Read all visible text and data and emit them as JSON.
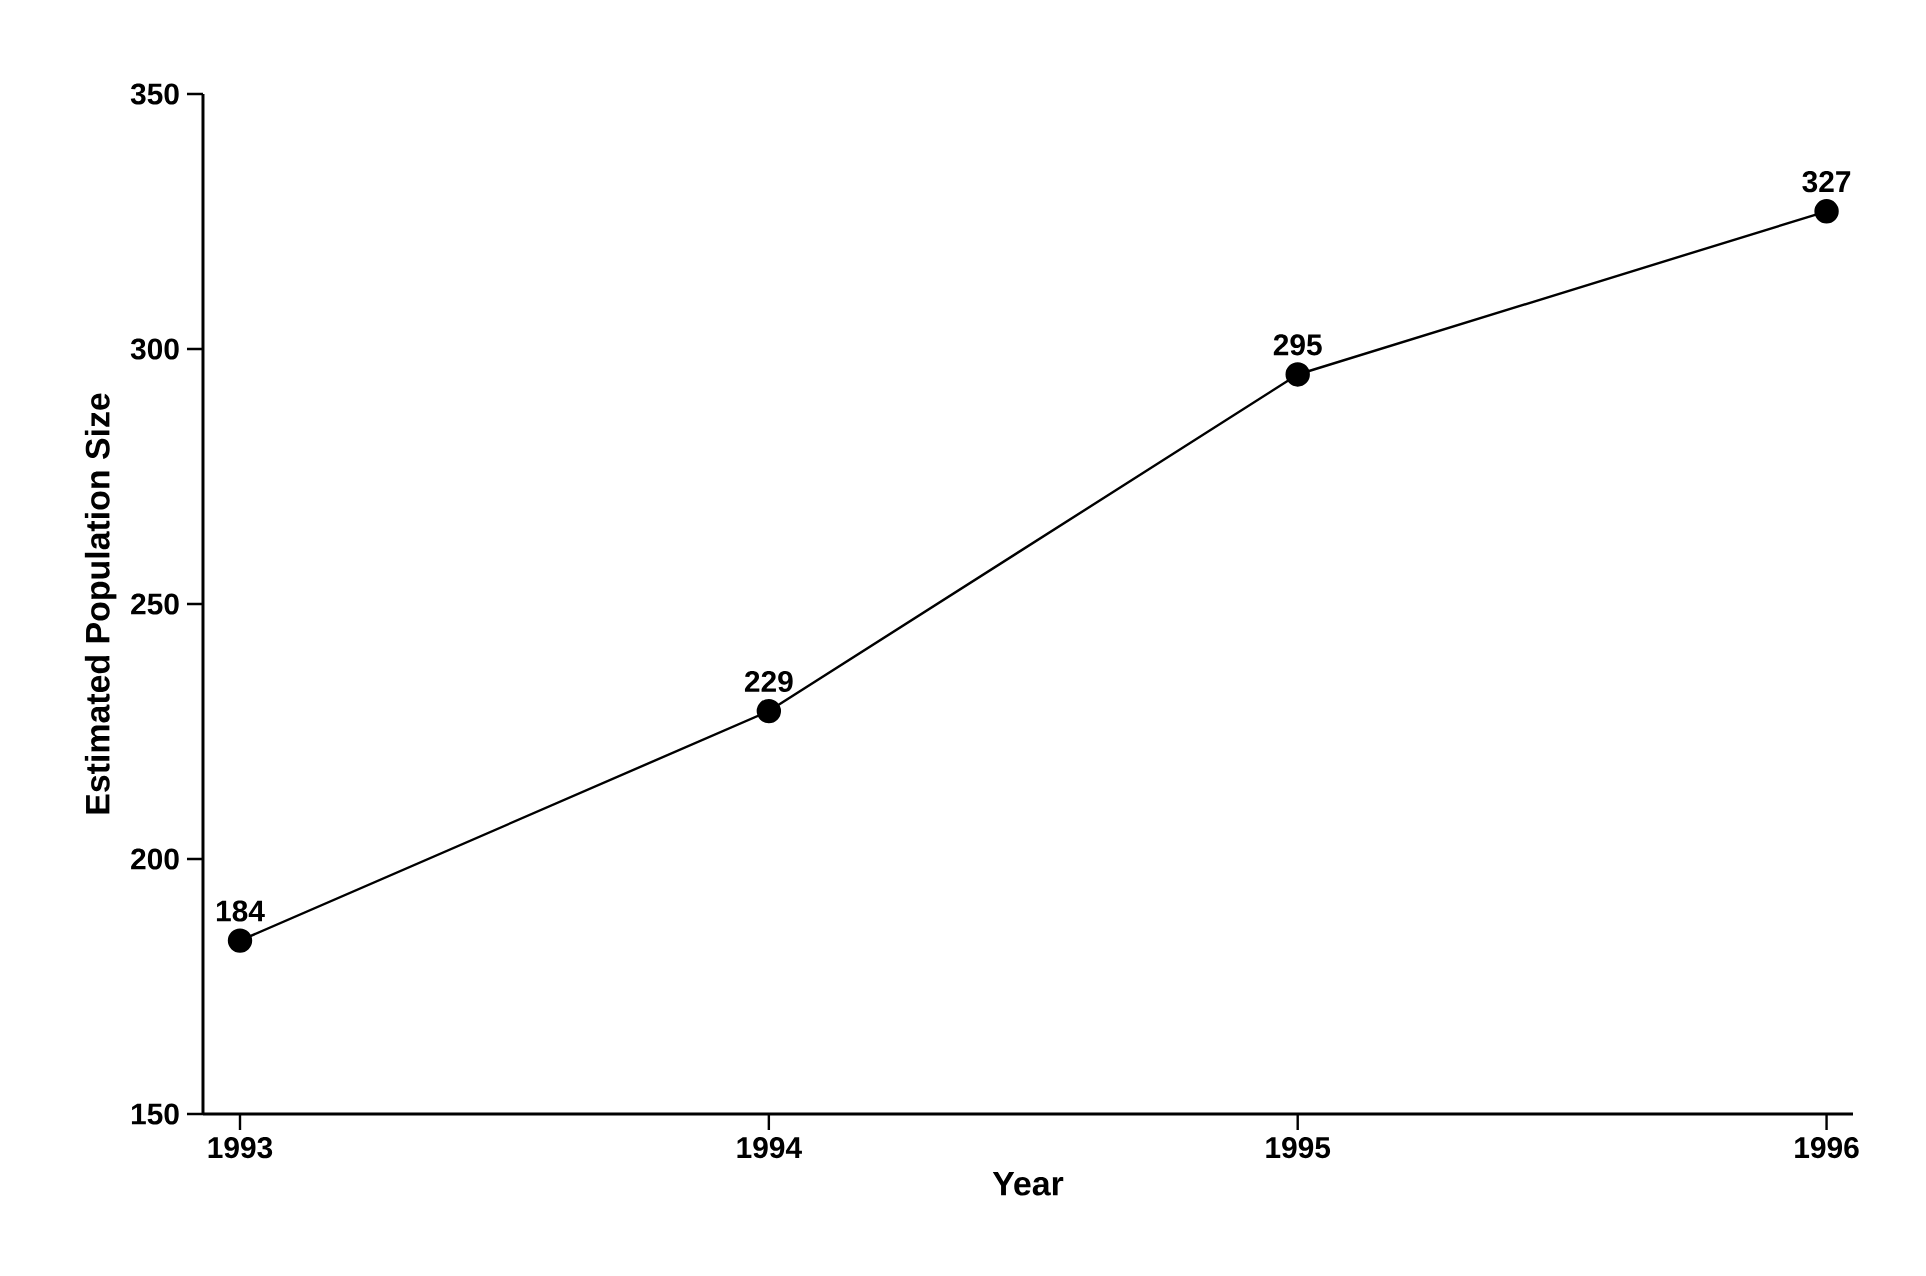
{
  "chart_data": {
    "type": "line",
    "xlabel": "Year",
    "ylabel": "Estimated Population Size",
    "categories": [
      "1993",
      "1994",
      "1995",
      "1996"
    ],
    "values": [
      184,
      229,
      295,
      327
    ],
    "color": "#000000",
    "ylim": [
      150,
      350
    ],
    "yticks": [
      150,
      200,
      250,
      300,
      350
    ],
    "data_labels": true,
    "marker": "circle",
    "line_style": "solid"
  }
}
